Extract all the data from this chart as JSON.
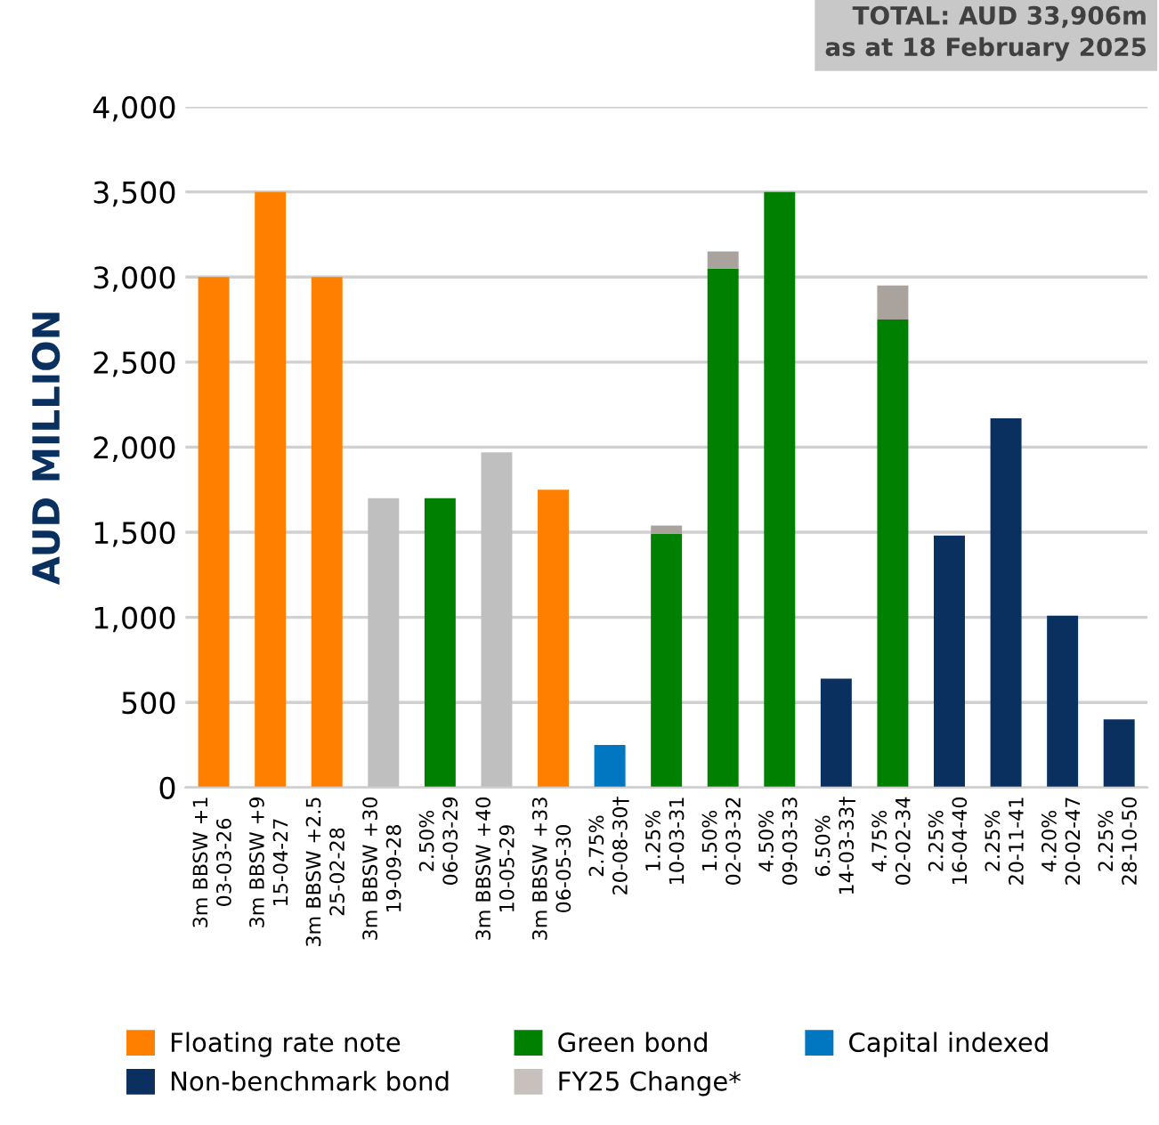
{
  "chart_data": {
    "type": "bar",
    "stacked": true,
    "ylabel": "AUD MILLION",
    "categories": [
      "3m BBSW +1\n03-03-26",
      "3m BBSW +9\n15-04-27",
      "3m BBSW +2.5\n25-02-28",
      "3m BBSW +30\n19-09-28",
      "2.50%\n06-03-29",
      "3m BBSW +40\n10-05-29",
      "3m BBSW +33\n06-05-30",
      "2.75%\n20-08-30†",
      "1.25%\n10-03-31",
      "1.50%\n02-03-32",
      "4.50%\n09-03-33",
      "6.50%\n14-03-33†",
      "4.75%\n02-02-34",
      "2.25%\n16-04-40",
      "2.25%\n20-11-41",
      "4.20%\n20-02-47",
      "2.25%\n28-10-50"
    ],
    "series": [
      {
        "name": "Floating rate note",
        "color": "#ff7f00",
        "values": [
          3000,
          3500,
          3000,
          null,
          null,
          null,
          1750,
          null,
          null,
          null,
          null,
          null,
          null,
          null,
          null,
          null,
          null
        ]
      },
      {
        "name": "Green bond",
        "color": "#008000",
        "values": [
          null,
          null,
          null,
          null,
          1700,
          null,
          null,
          null,
          1490,
          3050,
          3500,
          null,
          2750,
          null,
          null,
          null,
          null
        ]
      },
      {
        "name": "Capital indexed",
        "color": "#0077c0",
        "values": [
          null,
          null,
          null,
          null,
          null,
          null,
          null,
          250,
          null,
          null,
          null,
          null,
          null,
          null,
          null,
          null,
          null
        ]
      },
      {
        "name": "Non-benchmark bond",
        "color": "#0a3060",
        "values": [
          null,
          null,
          null,
          null,
          null,
          null,
          null,
          null,
          null,
          null,
          null,
          640,
          null,
          1480,
          2170,
          1010,
          400
        ]
      },
      {
        "name": "FY25 Change*",
        "color": "#c8c0bc",
        "colors": [
          "#c8c0bc",
          "#c8c0bc",
          "#c8c0bc",
          "#bfbfbf",
          "#c8c0bc",
          "#bfbfbf",
          "#c8c0bc",
          "#c8c0bc",
          "#aaa29c",
          "#aaa29c",
          "#c8c0bc",
          "#c8c0bc",
          "#aaa29c",
          "#c8c0bc",
          "#c8c0bc",
          "#c8c0bc",
          "#c8c0bc"
        ],
        "values": [
          null,
          null,
          null,
          1700,
          null,
          1970,
          null,
          null,
          50,
          100,
          null,
          null,
          200,
          null,
          null,
          null,
          null
        ]
      }
    ],
    "ylim": [
      0,
      4000
    ],
    "yticks": [
      0,
      500,
      {
        "value": 1000,
        "label": "1,000"
      },
      {
        "value": 1500,
        "label": "1,500"
      },
      {
        "value": 2000,
        "label": "2,000"
      },
      {
        "value": 2500,
        "label": "2,500"
      },
      {
        "value": 3000,
        "label": "3,000"
      },
      {
        "value": 3500,
        "label": "3,500"
      },
      {
        "value": 4000,
        "label": "4,000"
      }
    ],
    "grid": "y",
    "legend": "bottom",
    "annotations": [
      "TOTAL: AUD 33,906m\nas at 18 February 2025"
    ]
  }
}
